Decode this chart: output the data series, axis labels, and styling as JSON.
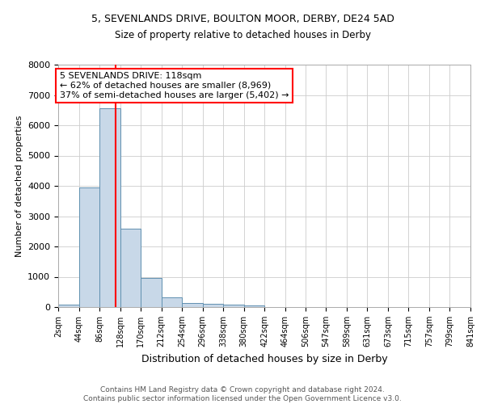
{
  "title1": "5, SEVENLANDS DRIVE, BOULTON MOOR, DERBY, DE24 5AD",
  "title2": "Size of property relative to detached houses in Derby",
  "xlabel": "Distribution of detached houses by size in Derby",
  "ylabel": "Number of detached properties",
  "footer1": "Contains HM Land Registry data © Crown copyright and database right 2024.",
  "footer2": "Contains public sector information licensed under the Open Government Licence v3.0.",
  "annotation_line1": "5 SEVENLANDS DRIVE: 118sqm",
  "annotation_line2": "← 62% of detached houses are smaller (8,969)",
  "annotation_line3": "37% of semi-detached houses are larger (5,402) →",
  "bin_edges": [
    2,
    44,
    86,
    128,
    170,
    212,
    254,
    296,
    338,
    380,
    422,
    464,
    506,
    547,
    589,
    631,
    673,
    715,
    757,
    799,
    841
  ],
  "bin_counts": [
    80,
    3950,
    6550,
    2600,
    960,
    320,
    130,
    120,
    80,
    60,
    0,
    0,
    0,
    0,
    0,
    0,
    0,
    0,
    0,
    0
  ],
  "bar_color": "#c8d8e8",
  "bar_edge_color": "#6090b0",
  "red_line_x": 118,
  "ylim": [
    0,
    8000
  ],
  "yticks": [
    0,
    1000,
    2000,
    3000,
    4000,
    5000,
    6000,
    7000,
    8000
  ],
  "x_tick_labels": [
    "2sqm",
    "44sqm",
    "86sqm",
    "128sqm",
    "170sqm",
    "212sqm",
    "254sqm",
    "296sqm",
    "338sqm",
    "380sqm",
    "422sqm",
    "464sqm",
    "506sqm",
    "547sqm",
    "589sqm",
    "631sqm",
    "673sqm",
    "715sqm",
    "757sqm",
    "799sqm",
    "841sqm"
  ],
  "background_color": "#ffffff",
  "grid_color": "#cccccc",
  "title1_fontsize": 9.0,
  "title2_fontsize": 8.5,
  "xlabel_fontsize": 9.0,
  "ylabel_fontsize": 8.0,
  "annotation_fontsize": 8.0,
  "footer_fontsize": 6.5
}
